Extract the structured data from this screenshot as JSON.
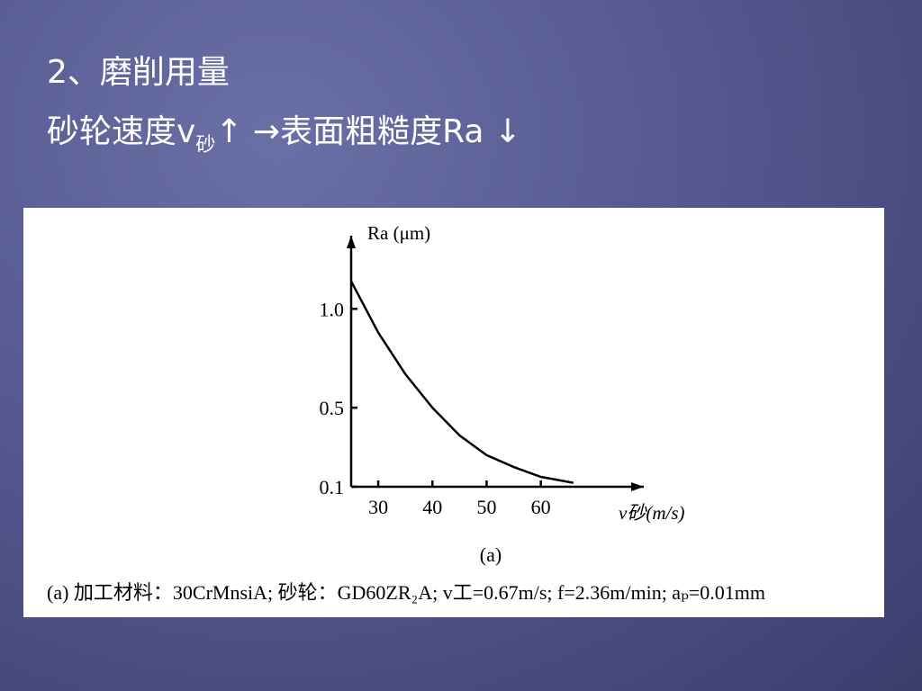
{
  "slide": {
    "title": "2、磨削用量",
    "line": [
      "砂轮速度v",
      "砂",
      "↑ →表面粗糙度Ra  ↓"
    ]
  },
  "chart_data": {
    "type": "line",
    "ylabel": "Ra (μm)",
    "xlabel": "v砂(m/s)",
    "subtitle": "(a)",
    "caption": "(a) 加工材料：30CrMnsiA;  砂轮：GD60ZR₂A;  v工=0.67m/s;  f=2.36m/min;  aₚ=0.01mm",
    "x": [
      25,
      30,
      35,
      40,
      45,
      50,
      55,
      60,
      66
    ],
    "series": [
      {
        "color": "#000000",
        "values": [
          1.14,
          0.88,
          0.67,
          0.5,
          0.36,
          0.26,
          0.2,
          0.15,
          0.12
        ]
      }
    ],
    "xlim": [
      25,
      79
    ],
    "ylim": [
      0.1,
      1.37
    ],
    "xticks": [
      30,
      40,
      50,
      60
    ],
    "yticks": [
      0.1,
      0.5,
      {
        "value": 1,
        "label": "1.0"
      }
    ]
  }
}
